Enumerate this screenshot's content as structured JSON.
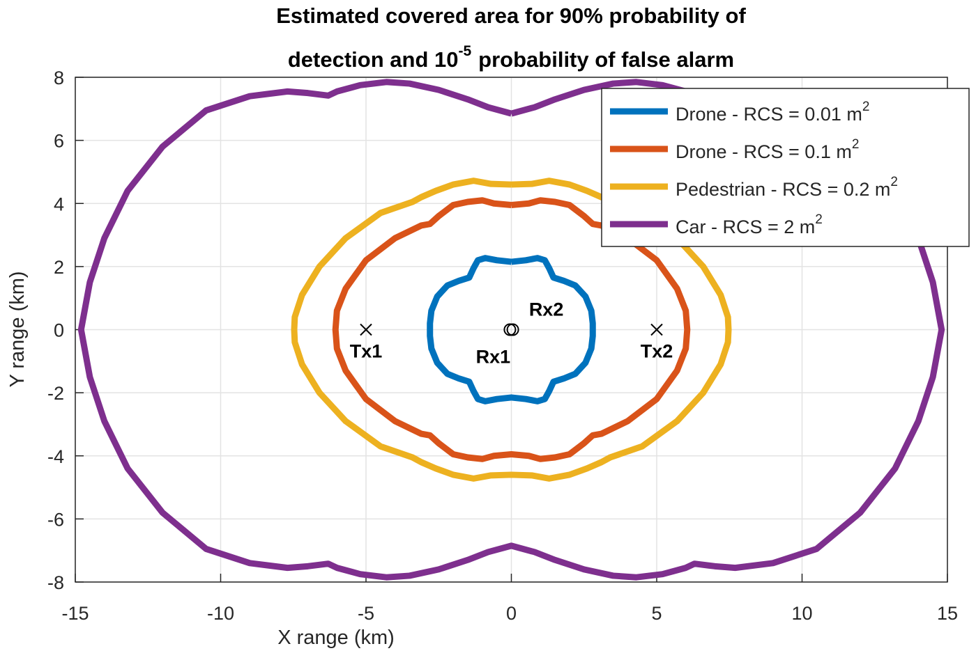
{
  "chart_data": {
    "type": "line",
    "title": {
      "line1": "Estimated covered area for 90% probability of",
      "line2_pre": "detection and 10",
      "line2_sup": "-5",
      "line2_post": "probability of false alarm"
    },
    "xlabel": "X range (km)",
    "ylabel": "Y range (km)",
    "xlim": [
      -15,
      15
    ],
    "ylim": [
      -8,
      8
    ],
    "xticks": [
      -15,
      -10,
      -5,
      0,
      5,
      10,
      15
    ],
    "yticks": [
      -8,
      -6,
      -4,
      -2,
      0,
      2,
      4,
      6,
      8
    ],
    "grid": true,
    "legend": "northeast",
    "series": [
      {
        "name": "Drone - RCS = 0.01 m",
        "name_sup": "2",
        "color": "#0072BD",
        "x": [
          0,
          0.5,
          0.9,
          1.15,
          1.3,
          1.45,
          1.8,
          2.2,
          2.55,
          2.75,
          2.8,
          2.8,
          2.8,
          2.75,
          2.55,
          2.2,
          1.8,
          1.45,
          1.3,
          1.15,
          0.9,
          0.5,
          0,
          -0.5,
          -0.9,
          -1.15,
          -1.3,
          -1.45,
          -1.8,
          -2.2,
          -2.55,
          -2.75,
          -2.8,
          -2.8,
          -2.8,
          -2.75,
          -2.55,
          -2.2,
          -1.8,
          -1.45,
          -1.3,
          -1.15,
          -0.9,
          -0.5,
          0
        ],
        "y": [
          2.15,
          2.2,
          2.27,
          2.2,
          1.95,
          1.65,
          1.55,
          1.4,
          1.05,
          0.6,
          0.2,
          0,
          -0.2,
          -0.6,
          -1.05,
          -1.4,
          -1.55,
          -1.65,
          -1.95,
          -2.2,
          -2.27,
          -2.2,
          -2.15,
          -2.2,
          -2.27,
          -2.2,
          -1.95,
          -1.65,
          -1.55,
          -1.4,
          -1.05,
          -0.6,
          -0.2,
          0,
          0.2,
          0.6,
          1.05,
          1.4,
          1.55,
          1.65,
          1.95,
          2.2,
          2.27,
          2.2,
          2.15
        ]
      },
      {
        "name": "Drone - RCS = 0.1 m",
        "name_sup": "2",
        "color": "#D95319",
        "x": [
          0,
          0.6,
          1.0,
          1.5,
          2.0,
          2.5,
          2.8,
          3.1,
          4.0,
          5.0,
          5.7,
          6.0,
          6.05,
          6.0,
          5.7,
          5.0,
          4.0,
          3.1,
          2.8,
          2.5,
          2.0,
          1.5,
          1.0,
          0.6,
          0,
          -0.6,
          -1.0,
          -1.5,
          -2.0,
          -2.5,
          -2.8,
          -3.1,
          -4.0,
          -5.0,
          -5.7,
          -6.0,
          -6.05,
          -6.0,
          -5.7,
          -5.0,
          -4.0,
          -3.1,
          -2.8,
          -2.5,
          -2.0,
          -1.5,
          -1.0,
          -0.6,
          0
        ],
        "y": [
          3.95,
          4.0,
          4.1,
          4.05,
          3.95,
          3.6,
          3.35,
          3.3,
          2.9,
          2.2,
          1.3,
          0.6,
          0,
          -0.6,
          -1.3,
          -2.2,
          -2.9,
          -3.3,
          -3.35,
          -3.6,
          -3.95,
          -4.05,
          -4.1,
          -4.0,
          -3.95,
          -4.0,
          -4.1,
          -4.05,
          -3.95,
          -3.6,
          -3.35,
          -3.3,
          -2.9,
          -2.2,
          -1.3,
          -0.6,
          0,
          0.6,
          1.3,
          2.2,
          2.9,
          3.3,
          3.35,
          3.6,
          3.95,
          4.05,
          4.1,
          4.0,
          3.95
        ]
      },
      {
        "name": "Pedestrian - RCS = 0.2 m",
        "name_sup": "2",
        "color": "#EDB120",
        "x": [
          0,
          0.7,
          1.3,
          2.0,
          2.6,
          3.1,
          3.4,
          4.5,
          5.7,
          6.6,
          7.2,
          7.45,
          7.47,
          7.45,
          7.2,
          6.6,
          5.7,
          4.5,
          3.4,
          3.1,
          2.6,
          2.0,
          1.3,
          0.7,
          0,
          -0.7,
          -1.3,
          -2.0,
          -2.6,
          -3.1,
          -3.4,
          -4.5,
          -5.7,
          -6.6,
          -7.2,
          -7.45,
          -7.47,
          -7.45,
          -7.2,
          -6.6,
          -5.7,
          -4.5,
          -3.4,
          -3.1,
          -2.6,
          -2.0,
          -1.3,
          -0.7,
          0
        ],
        "y": [
          4.6,
          4.62,
          4.72,
          4.6,
          4.4,
          4.2,
          4.05,
          3.7,
          2.9,
          2.0,
          1.1,
          0.4,
          0,
          -0.4,
          -1.1,
          -2.0,
          -2.9,
          -3.7,
          -4.05,
          -4.2,
          -4.4,
          -4.6,
          -4.72,
          -4.62,
          -4.6,
          -4.62,
          -4.72,
          -4.6,
          -4.4,
          -4.2,
          -4.05,
          -3.7,
          -2.9,
          -2.0,
          -1.1,
          -0.4,
          0,
          0.4,
          1.1,
          2.0,
          2.9,
          3.7,
          4.05,
          4.2,
          4.4,
          4.6,
          4.72,
          4.62,
          4.6
        ]
      },
      {
        "name": "Car - RCS = 2 m",
        "name_sup": "2",
        "color": "#7E2F8E",
        "x": [
          0,
          0.8,
          1.5,
          2.5,
          3.5,
          4.3,
          5.2,
          6.0,
          6.3,
          7.0,
          7.7,
          9.0,
          10.5,
          12.0,
          13.2,
          14.0,
          14.5,
          14.8,
          14.5,
          14.0,
          13.2,
          12.0,
          10.5,
          9.0,
          7.7,
          7.0,
          6.3,
          6.0,
          5.2,
          4.3,
          3.5,
          2.5,
          1.5,
          0.8,
          0,
          -0.8,
          -1.5,
          -2.5,
          -3.5,
          -4.3,
          -5.2,
          -6.0,
          -6.3,
          -7.0,
          -7.7,
          -9.0,
          -10.5,
          -12.0,
          -13.2,
          -14.0,
          -14.5,
          -14.8,
          -14.5,
          -14.0,
          -13.2,
          -12.0,
          -10.5,
          -9.0,
          -7.7,
          -7.0,
          -6.3,
          -6.0,
          -5.2,
          -4.3,
          -3.5,
          -2.5,
          -1.5,
          -0.8,
          0
        ],
        "y": [
          6.85,
          7.05,
          7.3,
          7.6,
          7.8,
          7.85,
          7.75,
          7.55,
          7.42,
          7.5,
          7.55,
          7.4,
          6.95,
          5.8,
          4.4,
          2.9,
          1.5,
          0,
          -1.5,
          -2.9,
          -4.4,
          -5.8,
          -6.95,
          -7.4,
          -7.55,
          -7.5,
          -7.42,
          -7.55,
          -7.75,
          -7.85,
          -7.8,
          -7.6,
          -7.3,
          -7.05,
          -6.85,
          -7.05,
          -7.3,
          -7.6,
          -7.8,
          -7.85,
          -7.75,
          -7.55,
          -7.42,
          -7.5,
          -7.55,
          -7.4,
          -6.95,
          -5.8,
          -4.4,
          -2.9,
          -1.5,
          0,
          1.5,
          2.9,
          4.4,
          5.8,
          6.95,
          7.4,
          7.55,
          7.5,
          7.42,
          7.55,
          7.75,
          7.85,
          7.8,
          7.6,
          7.3,
          7.05,
          6.85
        ]
      }
    ],
    "markers": [
      {
        "label": "Tx1",
        "x": -5,
        "y": 0,
        "marker": "x"
      },
      {
        "label": "Tx2",
        "x": 5,
        "y": 0,
        "marker": "x"
      },
      {
        "label": "Rx1",
        "x": -0.05,
        "y": 0,
        "marker": "o"
      },
      {
        "label": "Rx2",
        "x": 0.05,
        "y": 0,
        "marker": "o"
      }
    ]
  }
}
